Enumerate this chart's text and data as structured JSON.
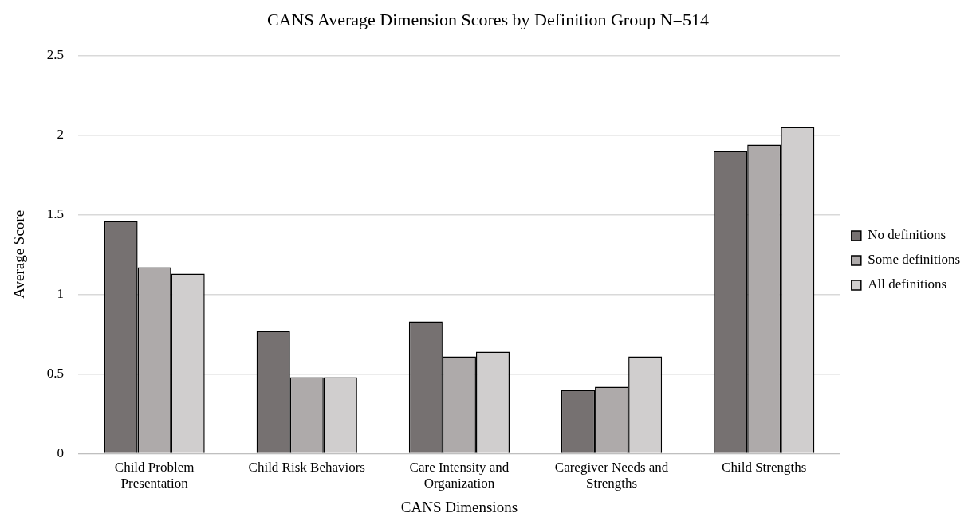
{
  "chart_data": {
    "type": "bar",
    "title": "CANS Average Dimension Scores by Definition Group N=514",
    "xlabel": "CANS Dimensions",
    "ylabel": "Average Score",
    "categories": [
      "Child Problem Presentation",
      "Child Risk Behaviors",
      "Care Intensity and Organization",
      "Caregiver Needs and Strengths",
      "Child Strengths"
    ],
    "series": [
      {
        "name": "No definitions",
        "color": "#767171",
        "values": [
          1.46,
          0.77,
          0.83,
          0.4,
          1.9
        ]
      },
      {
        "name": "Some definitions",
        "color": "#aeaaaa",
        "values": [
          1.17,
          0.48,
          0.61,
          0.42,
          1.94
        ]
      },
      {
        "name": "All definitions",
        "color": "#d0cece",
        "values": [
          1.13,
          0.48,
          0.64,
          0.61,
          2.05
        ]
      }
    ],
    "ylim": [
      0,
      2.5
    ],
    "yticks": [
      0,
      0.5,
      1,
      1.5,
      2,
      2.5
    ],
    "grid": "y",
    "legend": "right"
  }
}
